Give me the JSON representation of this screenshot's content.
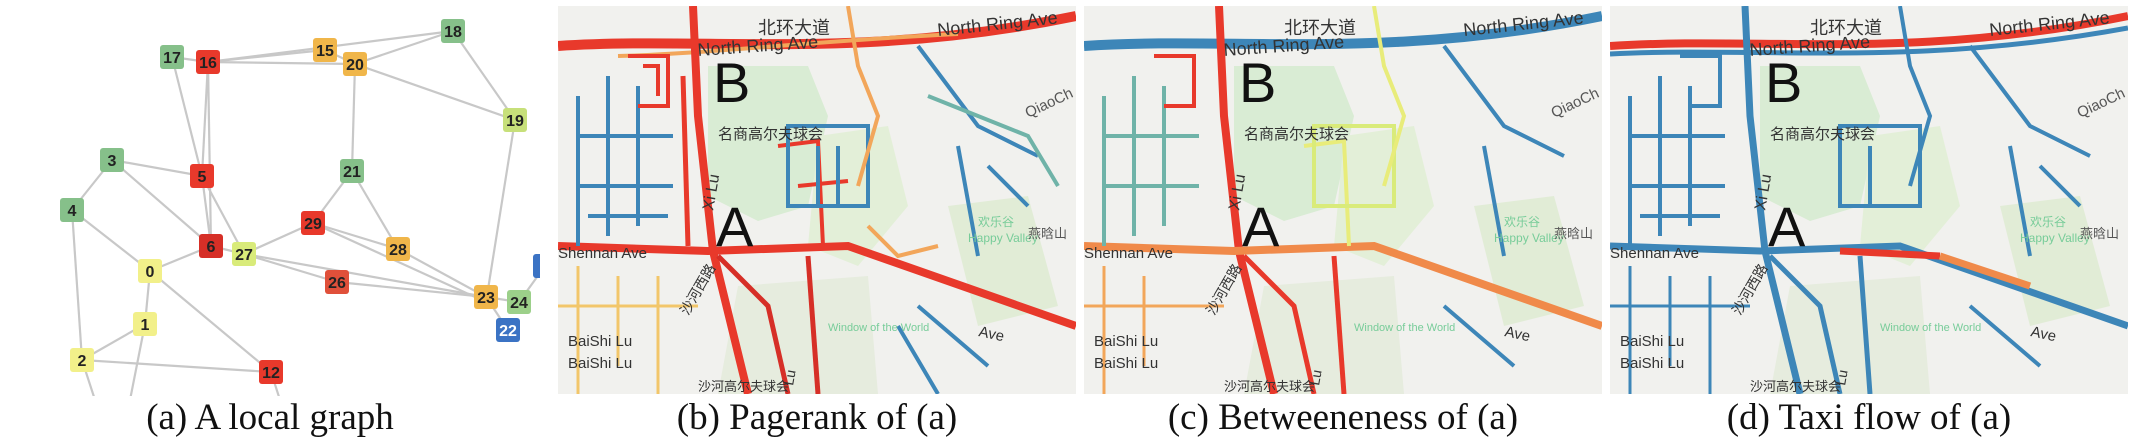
{
  "figure": {
    "panels": [
      {
        "id": "a",
        "caption": "(a) A local graph"
      },
      {
        "id": "b",
        "caption": "(b) Pagerank of (a)"
      },
      {
        "id": "c",
        "caption": "(c) Betweeneness of (a)"
      },
      {
        "id": "d",
        "caption": "(d) Taxi flow of (a)"
      }
    ]
  },
  "graph": {
    "nodes": [
      {
        "label": "17",
        "color": "#86c08a"
      },
      {
        "label": "16",
        "color": "#e8392b"
      },
      {
        "label": "15",
        "color": "#f0b64a"
      },
      {
        "label": "20",
        "color": "#f0b64a"
      },
      {
        "label": "18",
        "color": "#86c08a"
      },
      {
        "label": "19",
        "color": "#c7e07a"
      },
      {
        "label": "3",
        "color": "#86c08a"
      },
      {
        "label": "5",
        "color": "#e8392b"
      },
      {
        "label": "21",
        "color": "#86c08a"
      },
      {
        "label": "4",
        "color": "#86c08a"
      },
      {
        "label": "29",
        "color": "#e8392b"
      },
      {
        "label": "6",
        "color": "#d62f27"
      },
      {
        "label": "27",
        "color": "#d9eb7a"
      },
      {
        "label": "28",
        "color": "#f0b64a"
      },
      {
        "label": "0",
        "color": "#f2f08a"
      },
      {
        "label": "26",
        "color": "#e0503a"
      },
      {
        "label": "23",
        "color": "#f0b64a"
      },
      {
        "label": "24",
        "color": "#9cd08a"
      },
      {
        "label": "22",
        "color": "#3b73c4"
      },
      {
        "label": "1",
        "color": "#f2f08a"
      },
      {
        "label": "2",
        "color": "#f2f08a"
      },
      {
        "label": "12",
        "color": "#e8392b"
      },
      {
        "label": "2",
        "color": "#3b73c4"
      }
    ]
  },
  "maps": {
    "road_labels": {
      "north_ring_en": "North Ring Ave",
      "north_ring_cn": "北环大道",
      "shennan_en": "Shennan Ave",
      "shennan_ave": "Ave",
      "baishi": "BaiShi Lu",
      "baishi2": "BaiShi Lu",
      "golf_cn": "名商高尔夫球会",
      "golf_cn2": "沙河高尔夫球会",
      "shahe_cn": "沙河西路",
      "happy_valley": "Happy Valley",
      "happy_cn": "欢乐谷",
      "window": "Window of the World",
      "yanhan": "燕晗山",
      "qiaocheng": "QiaoCh",
      "xilu": "Xi Lu",
      "lu": "Lu",
      "point_a": "A",
      "point_b": "B"
    }
  }
}
